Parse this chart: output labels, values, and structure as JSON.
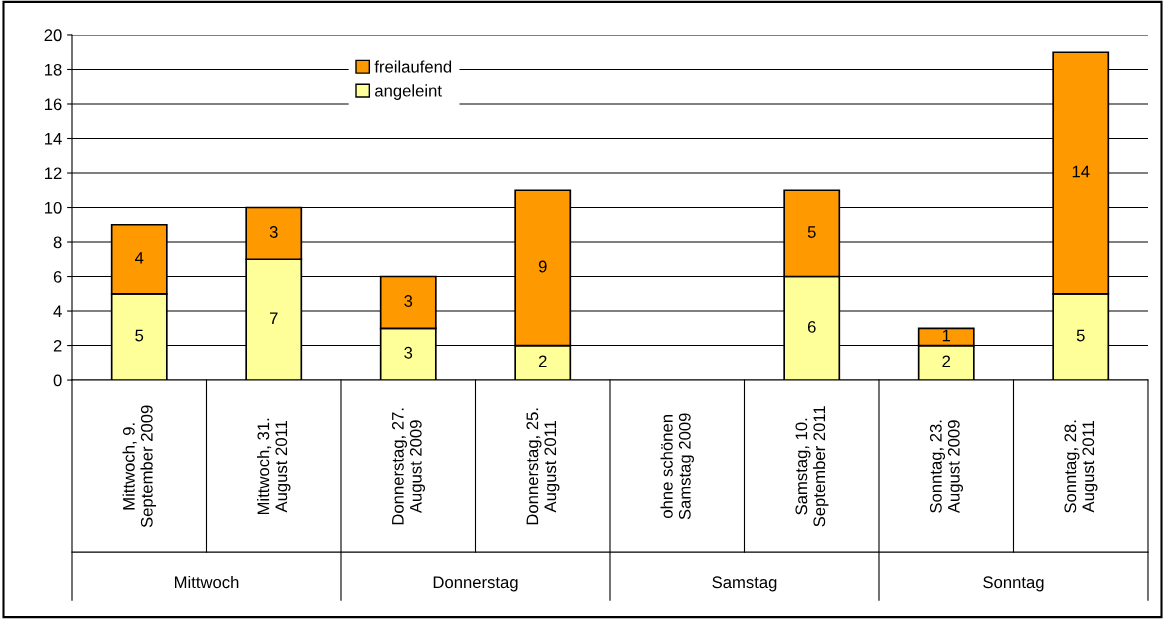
{
  "chart_data": {
    "type": "bar",
    "stacked": true,
    "categories": [
      "Mittwoch, 9.\nSeptember 2009",
      "Mittwoch, 31.\nAugust 2011",
      "Donnerstag, 27.\nAugust 2009",
      "Donnerstag, 25.\nAugust 2011",
      "ohne schönen\nSamstag 2009",
      "Samstag, 10.\nSeptember 2011",
      "Sonntag, 23.\nAugust 2009",
      "Sonntag, 28.\nAugust 2011"
    ],
    "series": [
      {
        "name": "angeleint",
        "color": "#ffff99",
        "values": [
          5,
          7,
          3,
          2,
          null,
          6,
          2,
          5
        ]
      },
      {
        "name": "freilaufend",
        "color": "#ff9900",
        "values": [
          4,
          3,
          3,
          9,
          null,
          5,
          1,
          14
        ]
      }
    ],
    "annotations": [
      "Mittwoch",
      "Donnerstag",
      "Samstag",
      "Sonntag"
    ],
    "ylim": [
      0,
      20
    ],
    "yticks": [
      0,
      2,
      4,
      6,
      8,
      10,
      12,
      14,
      16,
      18,
      20
    ],
    "grid": "y",
    "legend": "top left",
    "data_labels": true
  }
}
